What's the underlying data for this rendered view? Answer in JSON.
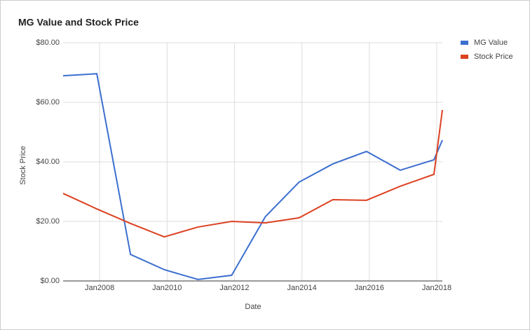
{
  "chart_data": {
    "type": "line",
    "title": "MG Value and Stock Price",
    "x_label": "Date",
    "y_label": "Stock Price",
    "x": [
      "2006-12",
      "2007-12",
      "2008-12",
      "2009-12",
      "2010-12",
      "2011-12",
      "2012-12",
      "2013-12",
      "2014-12",
      "2015-12",
      "2016-12",
      "2017-12",
      "2018-03"
    ],
    "series": [
      {
        "name": "MG Value",
        "color": "#3c6fcf",
        "values": [
          68.9,
          69.6,
          8.9,
          3.8,
          0.5,
          1.9,
          21.6,
          33.2,
          39.3,
          43.5,
          37.2,
          40.7,
          47.3
        ]
      },
      {
        "name": "Stock Price",
        "color": "#dc4122",
        "values": [
          29.4,
          24.2,
          19.3,
          14.8,
          18.1,
          20.0,
          19.5,
          21.2,
          27.3,
          27.1,
          31.8,
          35.8,
          57.4
        ]
      }
    ],
    "xlim": [
      "2006-12",
      "2018-03"
    ],
    "xticks": [
      {
        "value": "2008-01",
        "label": "Jan2008"
      },
      {
        "value": "2010-01",
        "label": "Jan2010"
      },
      {
        "value": "2012-01",
        "label": "Jan2012"
      },
      {
        "value": "2014-01",
        "label": "Jan2014"
      },
      {
        "value": "2016-01",
        "label": "Jan2016"
      },
      {
        "value": "2018-01",
        "label": "Jan2018"
      }
    ],
    "ylim": [
      0,
      80
    ],
    "yticks": [
      {
        "value": 0,
        "label": "$0.00"
      },
      {
        "value": 20,
        "label": "$20.00"
      },
      {
        "value": 40,
        "label": "$40.00"
      },
      {
        "value": 60,
        "label": "$60.00"
      },
      {
        "value": 80,
        "label": "$80.00"
      }
    ],
    "grid": true,
    "legend": "right"
  }
}
